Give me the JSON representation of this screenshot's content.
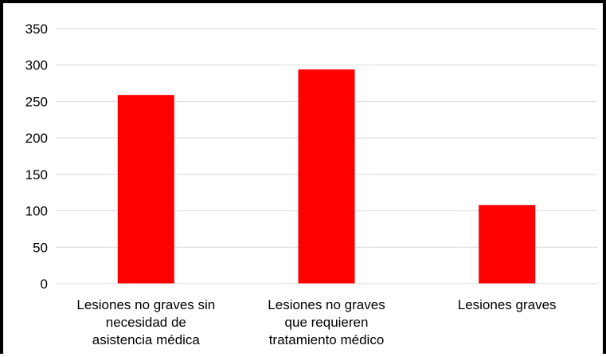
{
  "chart_data": {
    "type": "bar",
    "title": "",
    "xlabel": "",
    "ylabel": "",
    "categories": [
      [
        "Lesiones no graves sin",
        "necesidad de",
        "asistencia médica"
      ],
      [
        "Lesiones no graves",
        "que requieren",
        "tratamiento médico"
      ],
      [
        "Lesiones graves"
      ]
    ],
    "values": [
      259,
      294,
      108
    ],
    "ylim": [
      0,
      350
    ],
    "yticks": [
      0,
      50,
      100,
      150,
      200,
      250,
      300,
      350
    ],
    "grid": true,
    "legend": "none",
    "bar_color": "#ff0000",
    "grid_color": "#d9d9d9"
  }
}
